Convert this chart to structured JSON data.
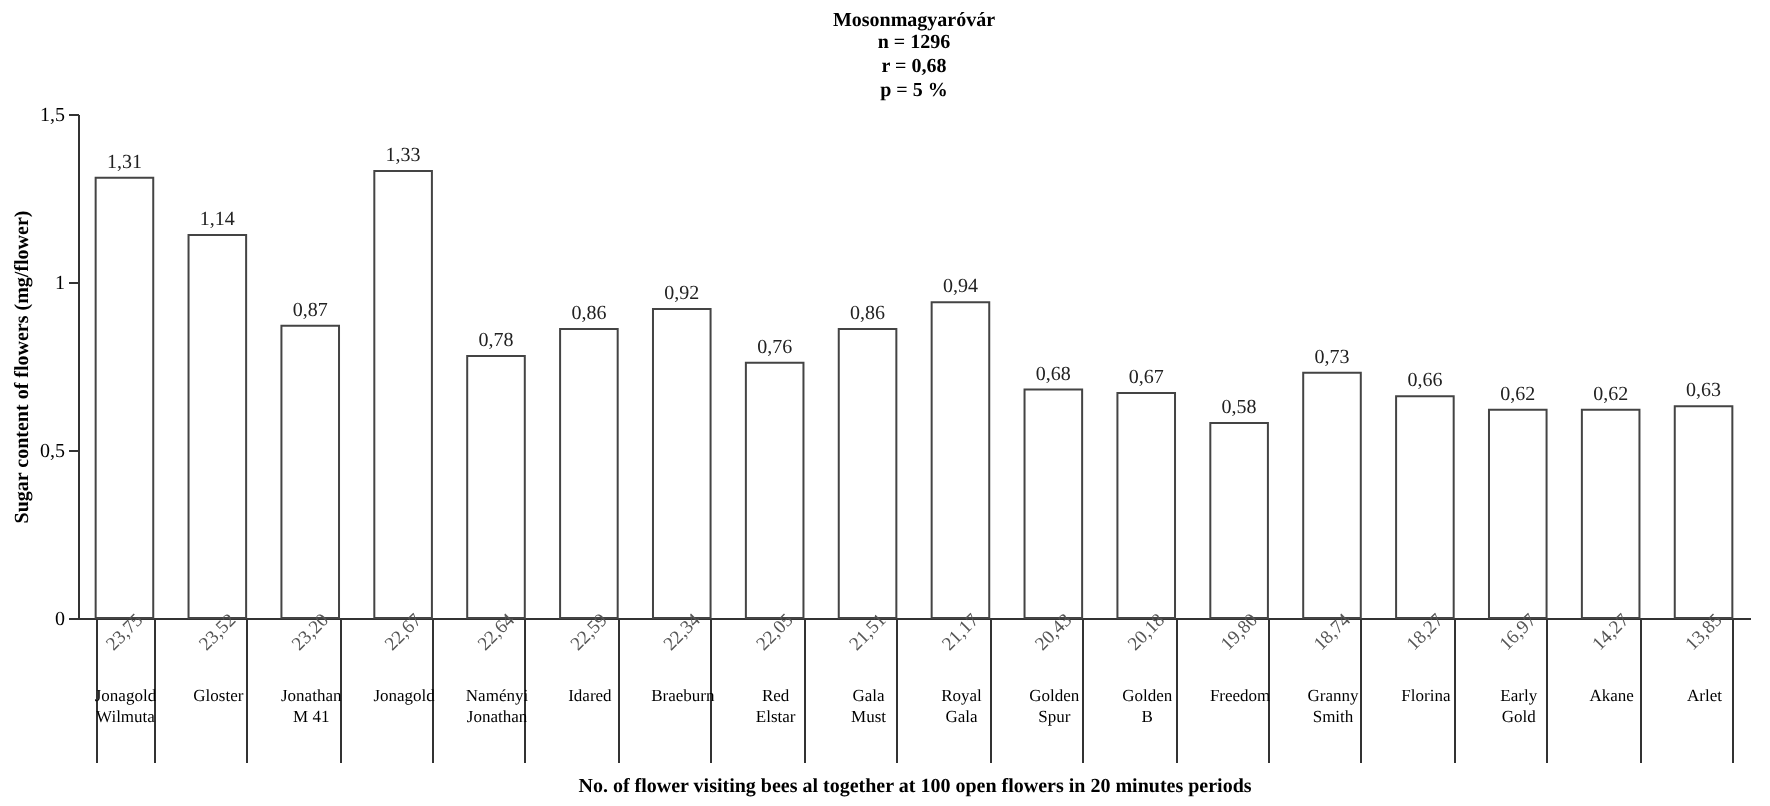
{
  "chart_data": {
    "type": "bar",
    "title": "Mosonmagyaróvár",
    "annotations": [
      "n = 1296",
      "r = 0,68",
      "p = 5 %",
      "23,75",
      "23,52",
      "23,20",
      "22,67",
      "22,64",
      "22,59",
      "22,34",
      "22,05",
      "21,51",
      "21,17",
      "20,43",
      "20,18",
      "19,80",
      "18,74",
      "18,27",
      "16,97",
      "14,27",
      "13,85"
    ],
    "xlabel": "No. of flower visiting bees al together at 100 open flowers in 20 minutes periods",
    "ylabel": "Sugar content of flowers (mg/flower)",
    "categories": [
      "Jonagold Wilmuta",
      "Gloster",
      "Jonathan M 41",
      "Jonagold",
      "Naményi Jonathan",
      "Idared",
      "Braeburn",
      "Red Elstar",
      "Gala Must",
      "Royal Gala",
      "Golden Spur",
      "Golden B",
      "Freedom",
      "Granny Smith",
      "Florina",
      "Early Gold",
      "Akane",
      "Arlet"
    ],
    "values": [
      1.31,
      1.14,
      0.87,
      1.33,
      0.78,
      0.86,
      0.92,
      0.76,
      0.86,
      0.94,
      0.68,
      0.67,
      0.58,
      0.73,
      0.66,
      0.62,
      0.62,
      0.63
    ],
    "value_labels": [
      "1,31",
      "1,14",
      "0,87",
      "1,33",
      "0,78",
      "0,86",
      "0,92",
      "0,76",
      "0,86",
      "0,94",
      "0,68",
      "0,67",
      "0,58",
      "0,73",
      "0,66",
      "0,62",
      "0,62",
      "0,63"
    ],
    "color": "#ffffff",
    "ylim": [
      0,
      1.5
    ],
    "yticks": [
      0,
      {
        "value": 0.5,
        "label": "0,5"
      },
      1,
      {
        "value": 1.5,
        "label": "1,5"
      }
    ]
  }
}
